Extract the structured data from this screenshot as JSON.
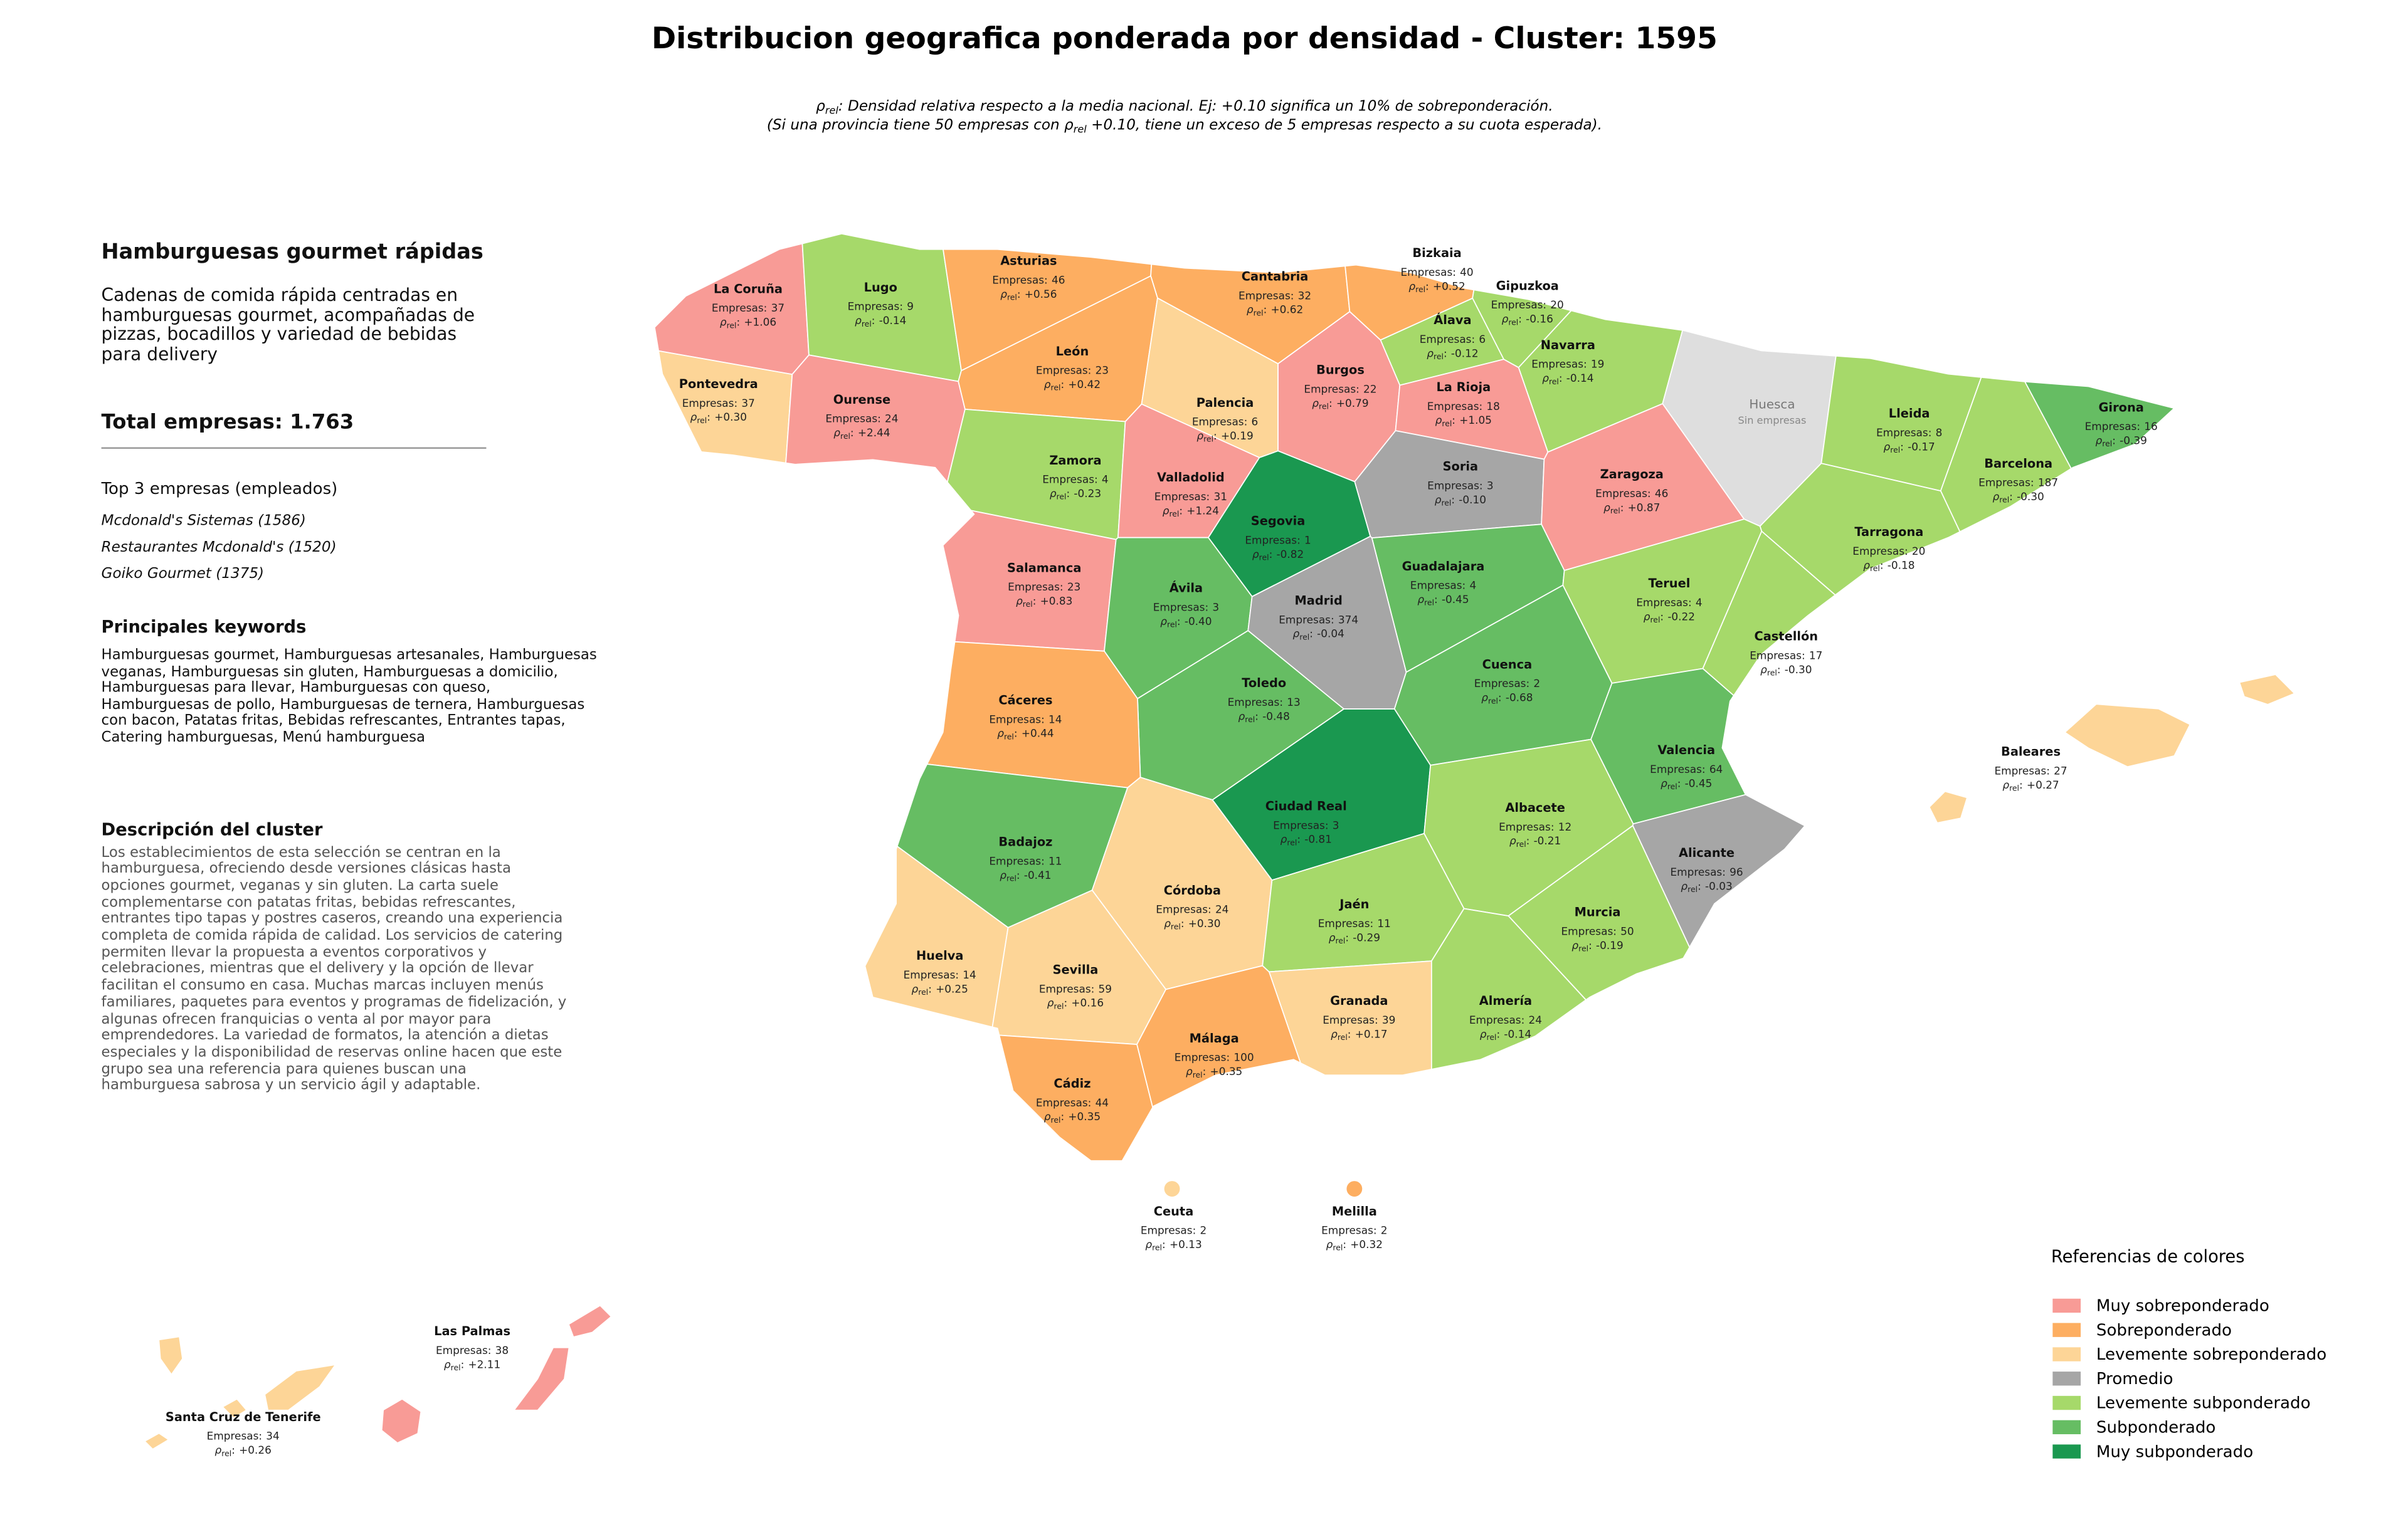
{
  "title": "Distribucion geografica ponderada por densidad - Cluster: 1595",
  "subtitle": {
    "line1": {
      "symbol": "ρ",
      "sub": "rel",
      "after": ": Densidad relativa respecto a la media nacional. Ej: +0.10 significa un 10% de sobreponderación."
    },
    "line2": {
      "before": "(Si una provincia tiene 50 empresas con ",
      "symbol": "ρ",
      "sub": "rel",
      "after": " +0.10, tiene un exceso de 5 empresas respecto a su cuota esperada)."
    }
  },
  "sidebar": {
    "heading": "Hamburguesas gourmet rápidas",
    "description": "Cadenas de comida rápida centradas en hamburguesas gourmet, acompañadas de pizzas, bocadillos y variedad de bebidas para delivery",
    "total": "Total empresas: 1.763",
    "top_heading": "Top 3 empresas (empleados)",
    "top": [
      "Mcdonald's Sistemas (1586)",
      "Restaurantes Mcdonald's (1520)",
      "Goiko Gourmet (1375)"
    ],
    "keywords_heading": "Principales keywords",
    "keywords": "Hamburguesas gourmet, Hamburguesas artesanales, Hamburguesas veganas, Hamburguesas sin gluten, Hamburguesas a domicilio, Hamburguesas para llevar, Hamburguesas con queso, Hamburguesas de pollo, Hamburguesas de ternera, Hamburguesas con bacon, Patatas fritas, Bebidas refrescantes, Entrantes tapas, Catering hamburguesas, Menú hamburguesa",
    "cluster_heading": "Descripción del cluster",
    "cluster_text": "Los establecimientos de esta selección se centran en la hamburguesa, ofreciendo desde versiones clásicas hasta opciones gourmet, veganas y sin gluten. La carta suele complementarse con patatas fritas, bebidas refrescantes, entrantes tipo tapas y postres caseros, creando una experiencia completa de comida rápida de calidad. Los servicios de catering permiten llevar la propuesta a eventos corporativos y celebraciones, mientras que el delivery y la opción de llevar facilitan el consumo en casa. Muchas marcas incluyen menús familiares, paquetes para eventos y programas de fidelización, y algunas ofrecen franquicias o venta al por mayor para emprendedores. La variedad de formatos, la atención a dietas especiales y la disponibilidad de reservas online hacen que este grupo sea una referencia para quienes buscan una hamburguesa sabrosa y un servicio ágil y adaptable."
  },
  "label_parts": {
    "empresas_prefix": "Empresas:",
    "symbol": "ρ",
    "sub": "rel",
    "sep": ":"
  },
  "no_data": {
    "label": "Sin empresas",
    "color": "#dedede"
  },
  "provinces": [
    {
      "name": "La Coruña",
      "empresas": 37,
      "rho": "+1.06",
      "color": "#f89b96"
    },
    {
      "name": "Lugo",
      "empresas": 9,
      "rho": "-0.14",
      "color": "#a6d96a"
    },
    {
      "name": "Asturias",
      "empresas": 46,
      "rho": "+0.56",
      "color": "#fdae61"
    },
    {
      "name": "Cantabria",
      "empresas": 32,
      "rho": "+0.62",
      "color": "#fdae61"
    },
    {
      "name": "Bizkaia",
      "empresas": 40,
      "rho": "+0.52",
      "color": "#fdae61"
    },
    {
      "name": "Gipuzkoa",
      "empresas": 20,
      "rho": "-0.16",
      "color": "#a6d96a"
    },
    {
      "name": "Álava",
      "empresas": 6,
      "rho": "-0.12",
      "color": "#a6d96a"
    },
    {
      "name": "Navarra",
      "empresas": 19,
      "rho": "-0.14",
      "color": "#a6d96a"
    },
    {
      "name": "Pontevedra",
      "empresas": 37,
      "rho": "+0.30",
      "color": "#fdd597"
    },
    {
      "name": "Ourense",
      "empresas": 24,
      "rho": "+2.44",
      "color": "#f89b96"
    },
    {
      "name": "León",
      "empresas": 23,
      "rho": "+0.42",
      "color": "#fdae61"
    },
    {
      "name": "Palencia",
      "empresas": 6,
      "rho": "+0.19",
      "color": "#fdd597"
    },
    {
      "name": "Burgos",
      "empresas": 22,
      "rho": "+0.79",
      "color": "#f89b96"
    },
    {
      "name": "La Rioja",
      "empresas": 18,
      "rho": "+1.05",
      "color": "#f89b96"
    },
    {
      "name": "Huesca",
      "color": "#dedede"
    },
    {
      "name": "Lleida",
      "empresas": 8,
      "rho": "-0.17",
      "color": "#a6d96a"
    },
    {
      "name": "Girona",
      "empresas": 16,
      "rho": "-0.39",
      "color": "#66bd63"
    },
    {
      "name": "Barcelona",
      "empresas": 187,
      "rho": "-0.30",
      "color": "#a6d96a"
    },
    {
      "name": "Zamora",
      "empresas": 4,
      "rho": "-0.23",
      "color": "#a6d96a"
    },
    {
      "name": "Valladolid",
      "empresas": 31,
      "rho": "+1.24",
      "color": "#f89b96"
    },
    {
      "name": "Soria",
      "empresas": 3,
      "rho": "-0.10",
      "color": "#a6a6a6"
    },
    {
      "name": "Zaragoza",
      "empresas": 46,
      "rho": "+0.87",
      "color": "#f89b96"
    },
    {
      "name": "Segovia",
      "empresas": 1,
      "rho": "-0.82",
      "color": "#1a9850"
    },
    {
      "name": "Salamanca",
      "empresas": 23,
      "rho": "+0.83",
      "color": "#f89b96"
    },
    {
      "name": "Guadalajara",
      "empresas": 4,
      "rho": "-0.45",
      "color": "#66bd63"
    },
    {
      "name": "Tarragona",
      "empresas": 20,
      "rho": "-0.18",
      "color": "#a6d96a"
    },
    {
      "name": "Ávila",
      "empresas": 3,
      "rho": "-0.40",
      "color": "#66bd63"
    },
    {
      "name": "Madrid",
      "empresas": 374,
      "rho": "-0.04",
      "color": "#a6a6a6"
    },
    {
      "name": "Teruel",
      "empresas": 4,
      "rho": "-0.22",
      "color": "#a6d96a"
    },
    {
      "name": "Castellón",
      "empresas": 17,
      "rho": "-0.30",
      "color": "#a6d96a"
    },
    {
      "name": "Toledo",
      "empresas": 13,
      "rho": "-0.48",
      "color": "#66bd63"
    },
    {
      "name": "Cuenca",
      "empresas": 2,
      "rho": "-0.68",
      "color": "#66bd63"
    },
    {
      "name": "Cáceres",
      "empresas": 14,
      "rho": "+0.44",
      "color": "#fdae61"
    },
    {
      "name": "Valencia",
      "empresas": 64,
      "rho": "-0.45",
      "color": "#66bd63"
    },
    {
      "name": "Ciudad Real",
      "empresas": 3,
      "rho": "-0.81",
      "color": "#1a9850"
    },
    {
      "name": "Albacete",
      "empresas": 12,
      "rho": "-0.21",
      "color": "#a6d96a"
    },
    {
      "name": "Badajoz",
      "empresas": 11,
      "rho": "-0.41",
      "color": "#66bd63"
    },
    {
      "name": "Alicante",
      "empresas": 96,
      "rho": "-0.03",
      "color": "#a6a6a6"
    },
    {
      "name": "Córdoba",
      "empresas": 24,
      "rho": "+0.30",
      "color": "#fdd597"
    },
    {
      "name": "Jaén",
      "empresas": 11,
      "rho": "-0.29",
      "color": "#a6d96a"
    },
    {
      "name": "Murcia",
      "empresas": 50,
      "rho": "-0.19",
      "color": "#a6d96a"
    },
    {
      "name": "Huelva",
      "empresas": 14,
      "rho": "+0.25",
      "color": "#fdd597"
    },
    {
      "name": "Sevilla",
      "empresas": 59,
      "rho": "+0.16",
      "color": "#fdd597"
    },
    {
      "name": "Granada",
      "empresas": 39,
      "rho": "+0.17",
      "color": "#fdd597"
    },
    {
      "name": "Almería",
      "empresas": 24,
      "rho": "-0.14",
      "color": "#a6d96a"
    },
    {
      "name": "Málaga",
      "empresas": 100,
      "rho": "+0.35",
      "color": "#fdae61"
    },
    {
      "name": "Cádiz",
      "empresas": 44,
      "rho": "+0.35",
      "color": "#fdae61"
    },
    {
      "name": "Baleares",
      "empresas": 27,
      "rho": "+0.27",
      "color": "#fdd597"
    },
    {
      "name": "Ceuta",
      "empresas": 2,
      "rho": "+0.13",
      "color": "#fdd597"
    },
    {
      "name": "Melilla",
      "empresas": 2,
      "rho": "+0.32",
      "color": "#fdae61"
    },
    {
      "name": "Las Palmas",
      "empresas": 38,
      "rho": "+2.11",
      "color": "#f89b96"
    },
    {
      "name": "Santa Cruz de Tenerife",
      "empresas": 34,
      "rho": "+0.26",
      "color": "#fdd597"
    }
  ],
  "legend": {
    "title": "Referencias de colores",
    "items": [
      {
        "label": "Muy sobreponderado",
        "color": "#f89b96"
      },
      {
        "label": "Sobreponderado",
        "color": "#fdae61"
      },
      {
        "label": "Levemente sobreponderado",
        "color": "#fdd597"
      },
      {
        "label": "Promedio",
        "color": "#a6a6a6"
      },
      {
        "label": "Levemente subponderado",
        "color": "#a6d96a"
      },
      {
        "label": "Subponderado",
        "color": "#66bd63"
      },
      {
        "label": "Muy subponderado",
        "color": "#1a9850"
      }
    ]
  }
}
